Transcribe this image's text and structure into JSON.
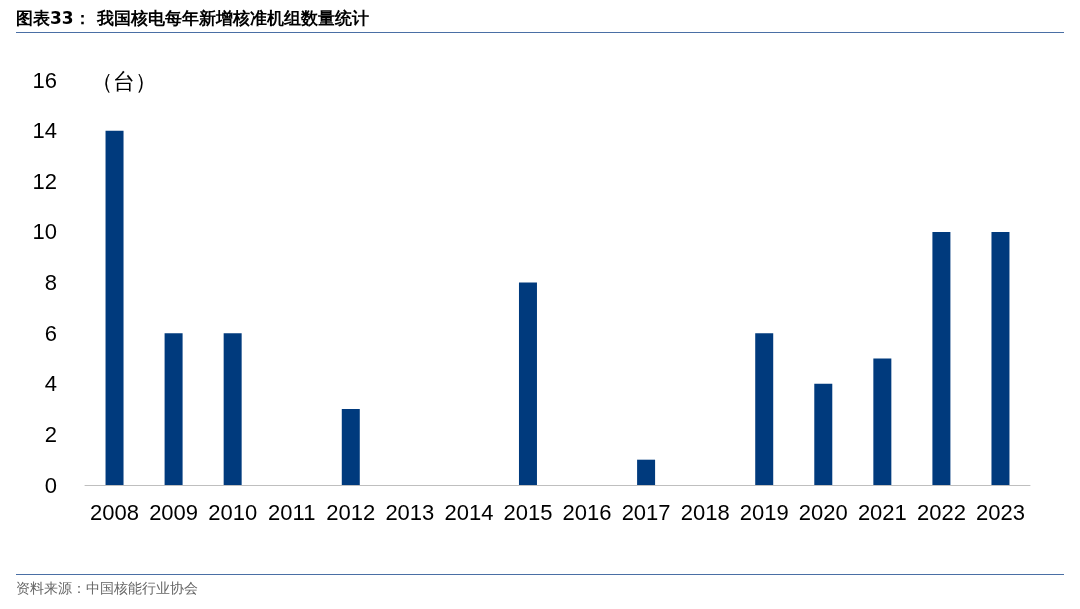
{
  "chart_data": {
    "type": "bar",
    "title": "图表33： 我国核电每年新增核准机组数量统计",
    "ylabel": "（台）",
    "categories": [
      "2008",
      "2009",
      "2010",
      "2011",
      "2012",
      "2013",
      "2014",
      "2015",
      "2016",
      "2017",
      "2018",
      "2019",
      "2020",
      "2021",
      "2022",
      "2023"
    ],
    "values": [
      14,
      6,
      6,
      0,
      3,
      0,
      0,
      8,
      0,
      1,
      0,
      6,
      4,
      5,
      10,
      10
    ],
    "color": "#003a7d",
    "ylim": [
      0,
      16
    ],
    "yticks": [
      0,
      2,
      4,
      6,
      8,
      10,
      12,
      14,
      16
    ],
    "grid": false,
    "annotations": [
      "资料来源：中国核能行业协会"
    ]
  }
}
